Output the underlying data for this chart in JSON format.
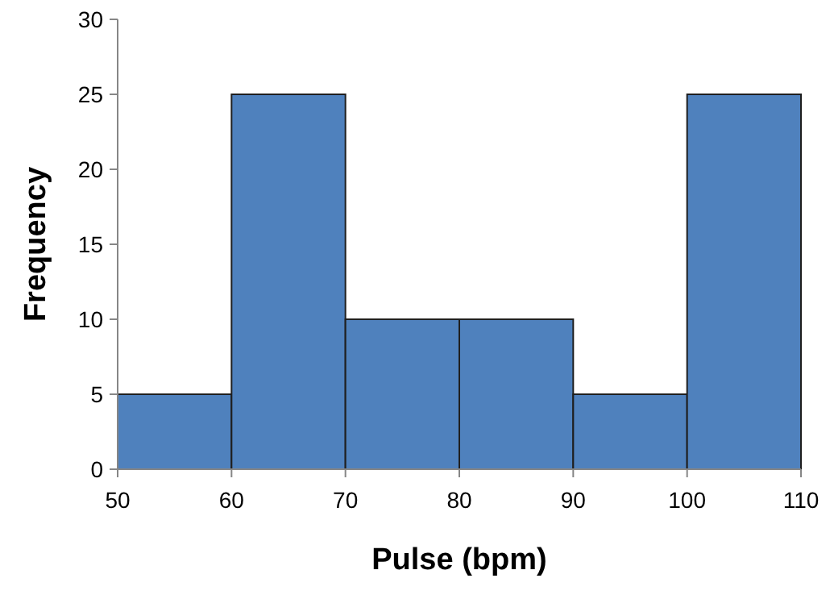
{
  "chart_data": {
    "type": "histogram",
    "xlabel": "Pulse (bpm)",
    "ylabel": "Frequency",
    "bins": [
      50,
      60,
      70,
      80,
      90,
      100,
      110
    ],
    "values": [
      5,
      25,
      10,
      10,
      5,
      25
    ],
    "color": "#4f81bd",
    "xlim": [
      50,
      110
    ],
    "xticks": [
      50,
      60,
      70,
      80,
      90,
      100,
      110
    ],
    "ylim": [
      0,
      30
    ],
    "yticks": [
      0,
      5,
      10,
      15,
      20,
      25,
      30
    ]
  }
}
